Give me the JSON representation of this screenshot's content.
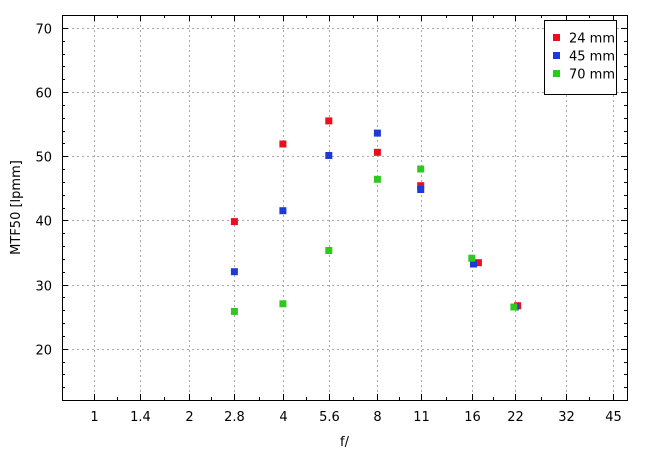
{
  "chart_data": {
    "type": "scatter",
    "xlabel": "f/",
    "ylabel": "MTF50 [lpmm]",
    "x_scale": "log2",
    "x_ticks": [
      {
        "value": 1,
        "label": "1"
      },
      {
        "value": 1.4,
        "label": "1.4"
      },
      {
        "value": 2,
        "label": "2"
      },
      {
        "value": 2.8,
        "label": "2.8"
      },
      {
        "value": 4,
        "label": "4"
      },
      {
        "value": 5.6,
        "label": "5.6"
      },
      {
        "value": 8,
        "label": "8"
      },
      {
        "value": 11,
        "label": "11"
      },
      {
        "value": 16,
        "label": "16"
      },
      {
        "value": 22,
        "label": "22"
      },
      {
        "value": 32,
        "label": "32"
      },
      {
        "value": 45,
        "label": "45"
      }
    ],
    "xlim": [
      0.79,
      50
    ],
    "y_ticks": [
      20,
      30,
      40,
      50,
      60,
      70
    ],
    "ylim": [
      12,
      72
    ],
    "grid": true,
    "legend_position": "top-right",
    "series": [
      {
        "name": "24 mm",
        "color": "#e8101a",
        "points": [
          {
            "x": 2.8,
            "y": 39.8
          },
          {
            "x": 4,
            "y": 51.9
          },
          {
            "x": 5.6,
            "y": 55.5
          },
          {
            "x": 8,
            "y": 50.6
          },
          {
            "x": 11,
            "y": 45.4
          },
          {
            "x": 16.8,
            "y": 33.4
          },
          {
            "x": 22.4,
            "y": 26.7
          }
        ]
      },
      {
        "name": "45 mm",
        "color": "#1c3bd6",
        "points": [
          {
            "x": 2.8,
            "y": 32.0
          },
          {
            "x": 4,
            "y": 41.5
          },
          {
            "x": 5.6,
            "y": 50.1
          },
          {
            "x": 8,
            "y": 53.6
          },
          {
            "x": 11,
            "y": 44.8
          },
          {
            "x": 16.2,
            "y": 33.2
          },
          {
            "x": 22,
            "y": 26.5
          }
        ]
      },
      {
        "name": "70 mm",
        "color": "#2ec81e",
        "points": [
          {
            "x": 2.8,
            "y": 25.8
          },
          {
            "x": 4,
            "y": 27.0
          },
          {
            "x": 5.6,
            "y": 35.3
          },
          {
            "x": 8,
            "y": 46.4
          },
          {
            "x": 11,
            "y": 48.0
          },
          {
            "x": 16,
            "y": 34.1
          },
          {
            "x": 21.8,
            "y": 26.5
          }
        ]
      }
    ]
  }
}
